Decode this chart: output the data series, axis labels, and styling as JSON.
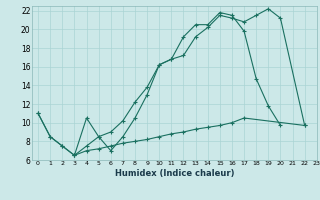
{
  "title": "",
  "xlabel": "Humidex (Indice chaleur)",
  "bg_color": "#cce8e8",
  "grid_color": "#aad4d4",
  "line_color": "#1a7060",
  "xlim": [
    -0.5,
    23
  ],
  "ylim": [
    6,
    22.5
  ],
  "xticks": [
    0,
    1,
    2,
    3,
    4,
    5,
    6,
    7,
    8,
    9,
    10,
    11,
    12,
    13,
    14,
    15,
    16,
    17,
    18,
    19,
    20,
    21,
    22,
    23
  ],
  "yticks": [
    6,
    8,
    10,
    12,
    14,
    16,
    18,
    20,
    22
  ],
  "curve1_x": [
    0,
    1,
    2,
    3,
    4,
    5,
    6,
    7,
    8,
    9,
    10,
    11,
    12,
    13,
    14,
    15,
    16,
    17,
    18,
    19,
    20,
    22
  ],
  "curve1_y": [
    11,
    8.5,
    7.5,
    6.5,
    10.5,
    8.5,
    7.0,
    8.5,
    10.5,
    13.0,
    16.2,
    16.8,
    17.2,
    19.2,
    20.2,
    21.5,
    21.2,
    20.8,
    21.5,
    22.2,
    21.2,
    9.7
  ],
  "curve2_x": [
    0,
    1,
    2,
    3,
    4,
    5,
    6,
    7,
    8,
    9,
    10,
    11,
    12,
    13,
    14,
    15,
    16,
    17,
    18,
    19,
    20
  ],
  "curve2_y": [
    11,
    8.5,
    7.5,
    6.5,
    7.5,
    8.5,
    9.0,
    10.2,
    12.2,
    13.8,
    16.2,
    16.8,
    19.2,
    20.5,
    20.5,
    21.8,
    21.5,
    19.8,
    14.7,
    11.8,
    9.7
  ],
  "curve3_x": [
    3,
    4,
    5,
    6,
    7,
    8,
    9,
    10,
    11,
    12,
    13,
    14,
    15,
    16,
    17,
    22
  ],
  "curve3_y": [
    6.5,
    7.0,
    7.2,
    7.5,
    7.8,
    8.0,
    8.2,
    8.5,
    8.8,
    9.0,
    9.3,
    9.5,
    9.7,
    10.0,
    10.5,
    9.7
  ]
}
